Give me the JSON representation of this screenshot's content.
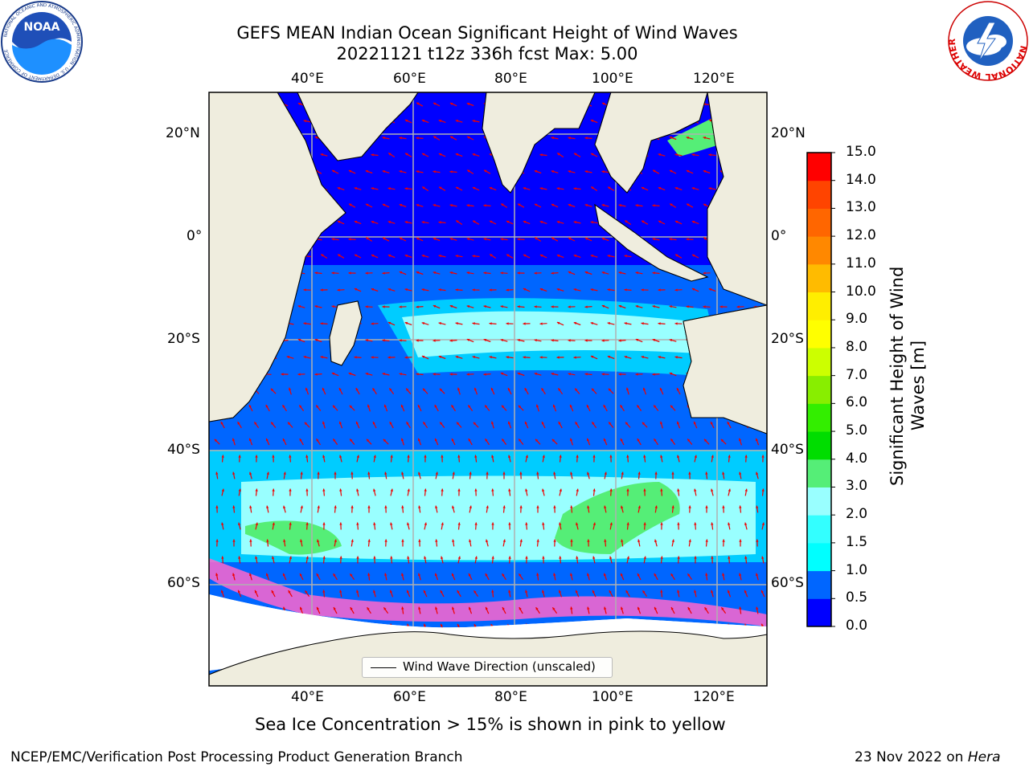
{
  "title": {
    "line1": "GEFS MEAN Indian Ocean Significant Height of Wind Waves",
    "line2": "20221121 t12z 336h fcst   Max: 5.00"
  },
  "logos": {
    "noaa_text": "NOAA",
    "noaa_ring_text": "NATIONAL OCEANIC AND ATMOSPHERIC ADMINISTRATION · U.S. DEPARTMENT OF COMMERCE",
    "nws_ring_text": "NATIONAL WEATHER SERVICE"
  },
  "map": {
    "lon_ticks": [
      "40°E",
      "60°E",
      "80°E",
      "100°E",
      "120°E"
    ],
    "lat_ticks_left": [
      "20°N",
      "0°",
      "20°S",
      "40°S",
      "60°S"
    ],
    "lat_ticks_right": [
      "20°N",
      "0°",
      "20°S",
      "40°S",
      "60°S"
    ],
    "legend_label": "Wind Wave Direction (unscaled)",
    "colors": {
      "land": "#efedde",
      "ocean_low": "#0000ff",
      "band_0_5": "#0066ff",
      "band_1_0": "#00ccff",
      "band_1_5": "#33f5ff",
      "band_2_0": "#99ffff",
      "band_3_0": "#55ee77",
      "sea_ice": "#ff66cc",
      "arrows": "#ee0000"
    }
  },
  "colorbar": {
    "title": "Significant Height of Wind Waves [m]",
    "title_line1": "Significant Height of Wind",
    "title_line2": "Waves [m]",
    "ticks": [
      "0.0",
      "0.5",
      "1.0",
      "1.5",
      "2.0",
      "3.0",
      "4.0",
      "5.0",
      "6.0",
      "7.0",
      "8.0",
      "9.0",
      "10.0",
      "11.0",
      "12.0",
      "13.0",
      "14.0",
      "15.0"
    ],
    "colors": [
      "#0000ff",
      "#0066ff",
      "#00ffff",
      "#33ffff",
      "#99ffff",
      "#55ee77",
      "#00dd00",
      "#33ee00",
      "#88ee00",
      "#ccff00",
      "#ffff00",
      "#ffee00",
      "#ffbb00",
      "#ff8800",
      "#ff6600",
      "#ff4400",
      "#ff0000"
    ]
  },
  "footnote": "Sea Ice Concentration > 15% is shown in pink to yellow",
  "credit_left": "NCEP/EMC/Verification Post Processing Product Generation Branch",
  "credit_right_prefix": "23 Nov 2022 on ",
  "credit_right_host": "Hera"
}
